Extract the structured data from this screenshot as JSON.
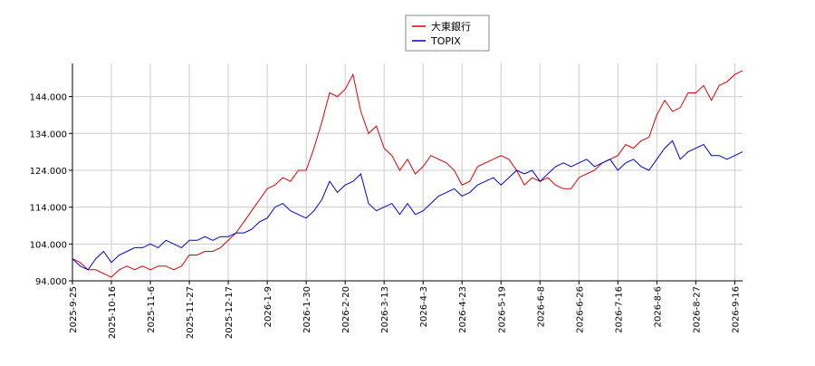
{
  "chart_data": {
    "type": "line",
    "categories": [
      "2025-9-25",
      null,
      null,
      null,
      null,
      "2025-10-16",
      null,
      null,
      null,
      null,
      "2025-11-6",
      null,
      null,
      null,
      null,
      "2025-11-27",
      null,
      null,
      null,
      null,
      "2025-12-17",
      null,
      null,
      null,
      null,
      "2026-1-9",
      null,
      null,
      null,
      null,
      "2026-1-30",
      null,
      null,
      null,
      null,
      "2026-2-20",
      null,
      null,
      null,
      null,
      "2026-3-13",
      null,
      null,
      null,
      null,
      "2026-4-3",
      null,
      null,
      null,
      null,
      "2026-4-23",
      null,
      null,
      null,
      null,
      "2026-5-19",
      null,
      null,
      null,
      null,
      "2026-6-8",
      null,
      null,
      null,
      null,
      "2026-6-26",
      null,
      null,
      null,
      null,
      "2026-7-16",
      null,
      null,
      null,
      null,
      "2026-8-6",
      null,
      null,
      null,
      null,
      "2026-8-27",
      null,
      null,
      null,
      null,
      "2026-9-16",
      null
    ],
    "series": [
      {
        "name": "大東銀行",
        "color": "#dd0000",
        "values": [
          100,
          99,
          97,
          97,
          96,
          95,
          97,
          98,
          97,
          98,
          97,
          98,
          98,
          97,
          98,
          101,
          101,
          102,
          102,
          103,
          105,
          107,
          110,
          113,
          116,
          119,
          120,
          122,
          121,
          124,
          124,
          130,
          137,
          145,
          144,
          146,
          150,
          140,
          134,
          136,
          130,
          128,
          124,
          127,
          123,
          125,
          128,
          127,
          126,
          124,
          120,
          121,
          125,
          126,
          127,
          128,
          127,
          124,
          120,
          122,
          121,
          122,
          120,
          119,
          119,
          122,
          123,
          124,
          126,
          127,
          128,
          131,
          130,
          132,
          133,
          139,
          143,
          140,
          141,
          145,
          145,
          147,
          143,
          147,
          148,
          150,
          151
        ]
      },
      {
        "name": "TOPIX",
        "color": "#0000cc",
        "values": [
          100,
          98,
          97,
          100,
          102,
          99,
          101,
          102,
          103,
          103,
          104,
          103,
          105,
          104,
          103,
          105,
          105,
          106,
          105,
          106,
          106,
          107,
          107,
          108,
          110,
          111,
          114,
          115,
          113,
          112,
          111,
          113,
          116,
          121,
          118,
          120,
          121,
          123,
          115,
          113,
          114,
          115,
          112,
          115,
          112,
          113,
          115,
          117,
          118,
          119,
          117,
          118,
          120,
          121,
          122,
          120,
          122,
          124,
          123,
          124,
          121,
          123,
          125,
          126,
          125,
          126,
          127,
          125,
          126,
          127,
          124,
          126,
          127,
          125,
          124,
          127,
          130,
          132,
          127,
          129,
          130,
          131,
          128,
          128,
          127,
          128,
          129
        ]
      }
    ],
    "ylim": [
      94,
      153
    ],
    "yticks": [
      {
        "value": 94,
        "label": "94.000"
      },
      {
        "value": 104,
        "label": "104.000"
      },
      {
        "value": 114,
        "label": "114.000"
      },
      {
        "value": 124,
        "label": "124.000"
      },
      {
        "value": 134,
        "label": "134.000"
      },
      {
        "value": 144,
        "label": "144.000"
      }
    ],
    "grid": true
  }
}
